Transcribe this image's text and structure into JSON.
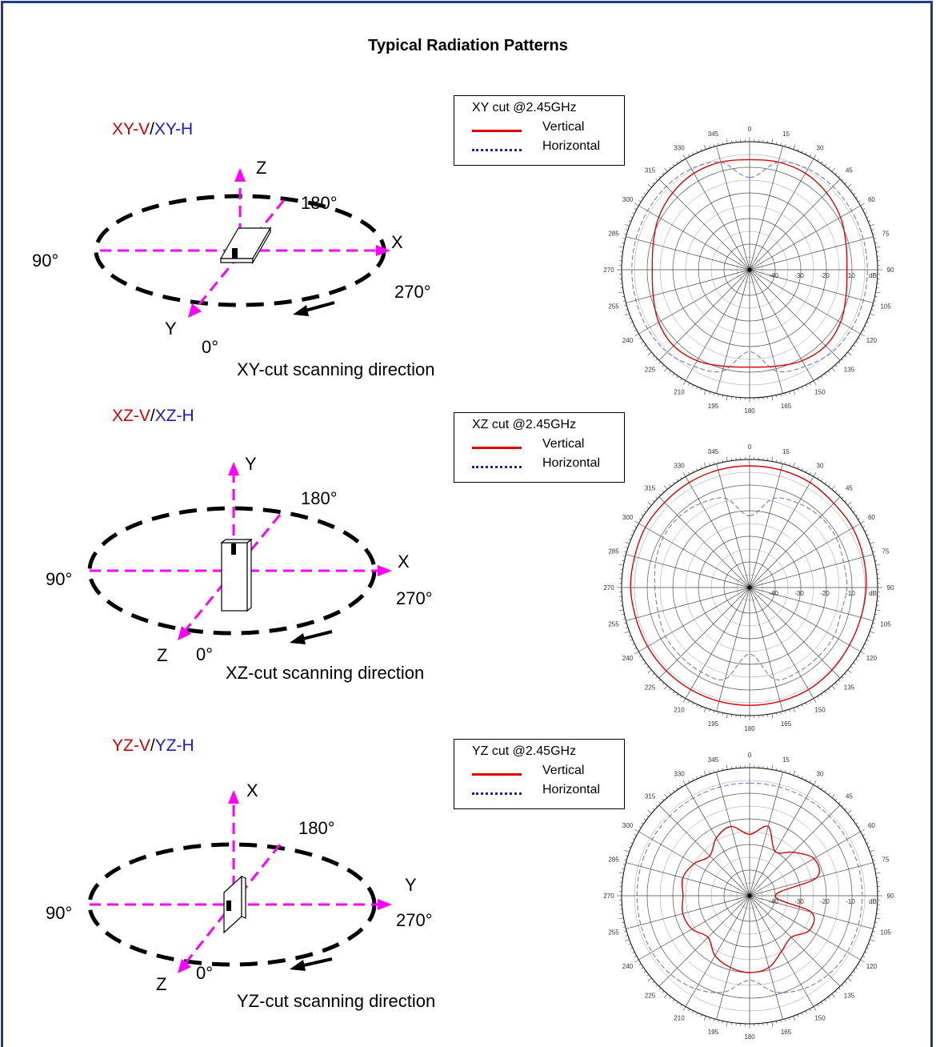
{
  "title": "Typical Radiation Patterns",
  "colors": {
    "vertical": "#e00000",
    "horizontal": "#6a6ad0",
    "frame": "#1f3c88",
    "axis": "#ff00ff"
  },
  "sections": [
    {
      "cut_v": "XY-V",
      "slash": "/",
      "cut_h": "XY-H",
      "axis_up": "Z",
      "axis_right": "X",
      "axis_front": "Y",
      "angle_back": "180°",
      "angle_left": "90°",
      "angle_right": "270°",
      "angle_front": "0°",
      "scan": "XY-cut scanning direction",
      "device": "flat",
      "legend": {
        "title": "XY cut @2.45GHz",
        "vertical": "Vertical",
        "horizontal": "Horizontal"
      }
    },
    {
      "cut_v": "XZ-V",
      "slash": "/",
      "cut_h": "XZ-H",
      "axis_up": "Y",
      "axis_right": "X",
      "axis_front": "Z",
      "angle_back": "180°",
      "angle_left": "90°",
      "angle_right": "270°",
      "angle_front": "0°",
      "scan": "XZ-cut scanning direction",
      "device": "upright",
      "legend": {
        "title": "XZ cut @2.45GHz",
        "vertical": "Vertical",
        "horizontal": "Horizontal"
      }
    },
    {
      "cut_v": "YZ-V",
      "slash": "/",
      "cut_h": "YZ-H",
      "axis_up": "X",
      "axis_right": "Y",
      "axis_front": "Z",
      "angle_back": "180°",
      "angle_left": "90°",
      "angle_right": "270°",
      "angle_front": "0°",
      "scan": "YZ-cut scanning direction",
      "device": "edge",
      "legend": {
        "title": "YZ cut @2.45GHz",
        "vertical": "Vertical",
        "horizontal": "Horizontal"
      }
    }
  ],
  "chart_data": [
    {
      "type": "polar",
      "title": "XY cut @2.45GHz",
      "angle_labels": [
        "0",
        "15",
        "30",
        "45",
        "60",
        "75",
        "90",
        "105",
        "120",
        "135",
        "150",
        "165",
        "180",
        "195",
        "210",
        "225",
        "240",
        "255",
        "270",
        "285",
        "300",
        "315",
        "330",
        "345"
      ],
      "radial_ticks": [
        "-40",
        "-30",
        "-20",
        "-10"
      ],
      "radial_unit": "dB",
      "rlim": [
        -50,
        0
      ],
      "series": [
        {
          "name": "Vertical",
          "angles": [
            0,
            15,
            30,
            45,
            60,
            75,
            90,
            105,
            120,
            135,
            150,
            165,
            180,
            195,
            210,
            225,
            240,
            255,
            270,
            285,
            300,
            315,
            330,
            345
          ],
          "values": [
            -7,
            -6.5,
            -6.5,
            -7.5,
            -9,
            -11,
            -12,
            -11,
            -9,
            -8,
            -9,
            -11,
            -12,
            -11,
            -9,
            -8,
            -9,
            -11,
            -12,
            -11,
            -9,
            -7.5,
            -6.5,
            -6.5
          ]
        },
        {
          "name": "Horizontal",
          "angles": [
            0,
            15,
            30,
            45,
            60,
            75,
            90,
            105,
            120,
            135,
            150,
            165,
            180,
            195,
            210,
            225,
            240,
            255,
            270,
            285,
            300,
            315,
            330,
            345
          ],
          "values": [
            -14,
            -6.5,
            -4.5,
            -4,
            -4,
            -4,
            -4,
            -4,
            -4,
            -4.5,
            -6.5,
            -9,
            -18,
            -9,
            -6.5,
            -4.5,
            -4,
            -4,
            -4,
            -4,
            -4,
            -4,
            -4.5,
            -6.5
          ]
        }
      ]
    },
    {
      "type": "polar",
      "title": "XZ cut @2.45GHz",
      "angle_labels": [
        "0",
        "15",
        "30",
        "45",
        "60",
        "75",
        "90",
        "105",
        "120",
        "135",
        "150",
        "165",
        "180",
        "195",
        "210",
        "225",
        "240",
        "255",
        "270",
        "285",
        "300",
        "315",
        "330",
        "345"
      ],
      "radial_ticks": [
        "-40",
        "-30",
        "-20",
        "-10"
      ],
      "radial_unit": "dB",
      "rlim": [
        -50,
        0
      ],
      "series": [
        {
          "name": "Vertical",
          "angles": [
            0,
            15,
            30,
            45,
            60,
            75,
            90,
            105,
            120,
            135,
            150,
            165,
            180,
            195,
            210,
            225,
            240,
            255,
            270,
            285,
            300,
            315,
            330,
            345
          ],
          "values": [
            -2.5,
            -2.5,
            -2.7,
            -3.5,
            -3.5,
            -4,
            -4.5,
            -5,
            -5,
            -4.5,
            -4,
            -4,
            -4,
            -4,
            -4,
            -4,
            -4,
            -4,
            -3.5,
            -3.5,
            -3,
            -3,
            -2.7,
            -2.5
          ]
        },
        {
          "name": "Horizontal",
          "angles": [
            0,
            15,
            30,
            45,
            60,
            75,
            90,
            105,
            120,
            135,
            150,
            165,
            180,
            195,
            210,
            225,
            240,
            255,
            270,
            285,
            300,
            315,
            330,
            345
          ],
          "values": [
            -22,
            -14,
            -12,
            -11,
            -11,
            -12,
            -12,
            -13,
            -12,
            -12,
            -12,
            -13,
            -24,
            -13,
            -12,
            -12,
            -12,
            -13,
            -13,
            -12,
            -11,
            -11,
            -12,
            -14
          ]
        }
      ]
    },
    {
      "type": "polar",
      "title": "YZ cut @2.45GHz",
      "angle_labels": [
        "0",
        "15",
        "30",
        "45",
        "60",
        "75",
        "90",
        "105",
        "120",
        "135",
        "150",
        "165",
        "180",
        "195",
        "210",
        "225",
        "240",
        "255",
        "270",
        "285",
        "300",
        "315",
        "330",
        "345"
      ],
      "radial_ticks": [
        "-40",
        "-30",
        "-20",
        "-10"
      ],
      "radial_unit": "dB",
      "rlim": [
        -50,
        0
      ],
      "series": [
        {
          "name": "Vertical",
          "angles": [
            0,
            15,
            30,
            45,
            60,
            75,
            90,
            105,
            120,
            135,
            150,
            165,
            180,
            195,
            210,
            225,
            240,
            255,
            270,
            285,
            300,
            315,
            330,
            345
          ],
          "values": [
            -26,
            -22,
            -30,
            -26,
            -21,
            -23,
            -40,
            -25,
            -23,
            -27,
            -25,
            -21,
            -20,
            -21,
            -23,
            -27,
            -24,
            -23,
            -24,
            -23,
            -25,
            -28,
            -24,
            -22
          ]
        },
        {
          "name": "Horizontal",
          "angles": [
            0,
            15,
            30,
            45,
            60,
            75,
            90,
            105,
            120,
            135,
            150,
            165,
            180,
            195,
            210,
            225,
            240,
            255,
            270,
            285,
            300,
            315,
            330,
            345
          ],
          "values": [
            -6,
            -6,
            -6,
            -6,
            -6,
            -6,
            -6,
            -6,
            -6,
            -6.5,
            -8,
            -11,
            -17,
            -11,
            -8,
            -6.5,
            -6,
            -6,
            -6,
            -6,
            -6,
            -6,
            -6,
            -6
          ]
        }
      ]
    }
  ]
}
